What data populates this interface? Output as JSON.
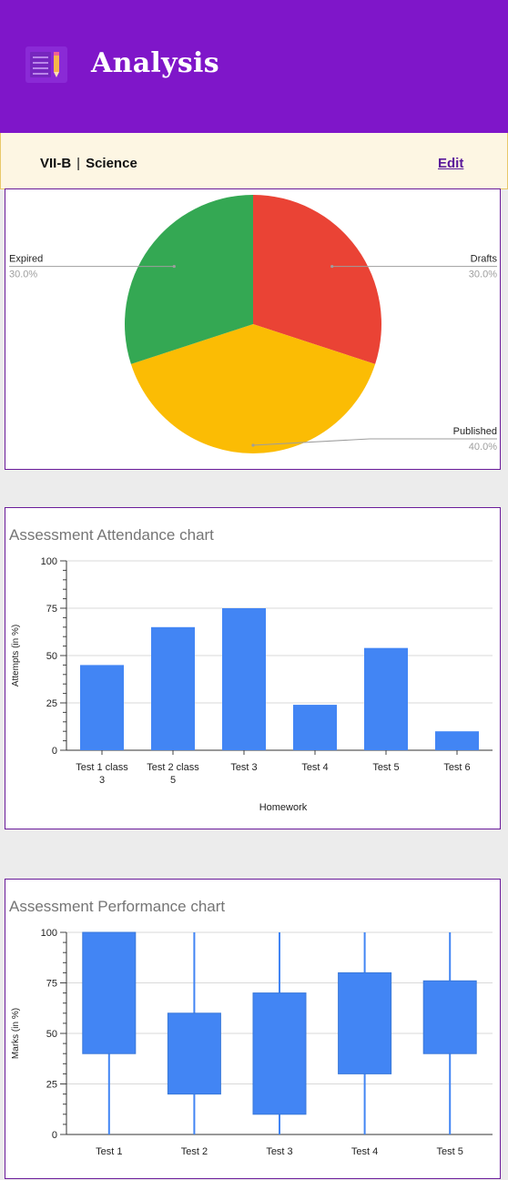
{
  "app": {
    "title": "Analysis",
    "icon": "notebook-pencil-icon"
  },
  "subheader": {
    "class_name": "VII-B",
    "separator": "|",
    "subject": "Science",
    "edit_label": "Edit"
  },
  "colors": {
    "appbar": "#7f16c9",
    "bar": "#4285f4",
    "drafts": "#ea4335",
    "published": "#fbbc04",
    "expired": "#34a853"
  },
  "chart_data": [
    {
      "type": "pie",
      "title": "",
      "slices": [
        {
          "label": "Drafts",
          "value": 30.0,
          "pct_label": "30.0%",
          "color": "#ea4335"
        },
        {
          "label": "Published",
          "value": 40.0,
          "pct_label": "40.0%",
          "color": "#fbbc04"
        },
        {
          "label": "Expired",
          "value": 30.0,
          "pct_label": "30.0%",
          "color": "#34a853"
        }
      ]
    },
    {
      "type": "bar",
      "title": "Assessment Attendance chart",
      "categories": [
        [
          "Test 1 class",
          "3"
        ],
        [
          "Test 2 class",
          "5"
        ],
        [
          "Test 3"
        ],
        [
          "Test 4"
        ],
        [
          "Test 5"
        ],
        [
          "Test 6"
        ]
      ],
      "values": [
        45,
        65,
        75,
        24,
        54,
        10
      ],
      "xlabel": "Homework",
      "ylabel": "Attempts (in %)",
      "ylim": [
        0,
        100
      ],
      "yticks": [
        0,
        25,
        50,
        75,
        100
      ],
      "grid": true
    },
    {
      "type": "candlestick",
      "title": "Assessment Performance chart",
      "categories": [
        "Test 1",
        "Test 2",
        "Test 3",
        "Test 4",
        "Test 5"
      ],
      "boxes": [
        {
          "low": 0,
          "open": 40,
          "close": 100,
          "high": 100
        },
        {
          "low": 0,
          "open": 20,
          "close": 60,
          "high": 100
        },
        {
          "low": 0,
          "open": 10,
          "close": 70,
          "high": 100
        },
        {
          "low": 0,
          "open": 30,
          "close": 80,
          "high": 100
        },
        {
          "low": 0,
          "open": 40,
          "close": 76,
          "high": 100
        }
      ],
      "xlabel": "",
      "ylabel": "Marks (in %)",
      "ylim": [
        0,
        100
      ],
      "yticks": [
        0,
        25,
        50,
        75,
        100
      ],
      "grid": true
    }
  ]
}
